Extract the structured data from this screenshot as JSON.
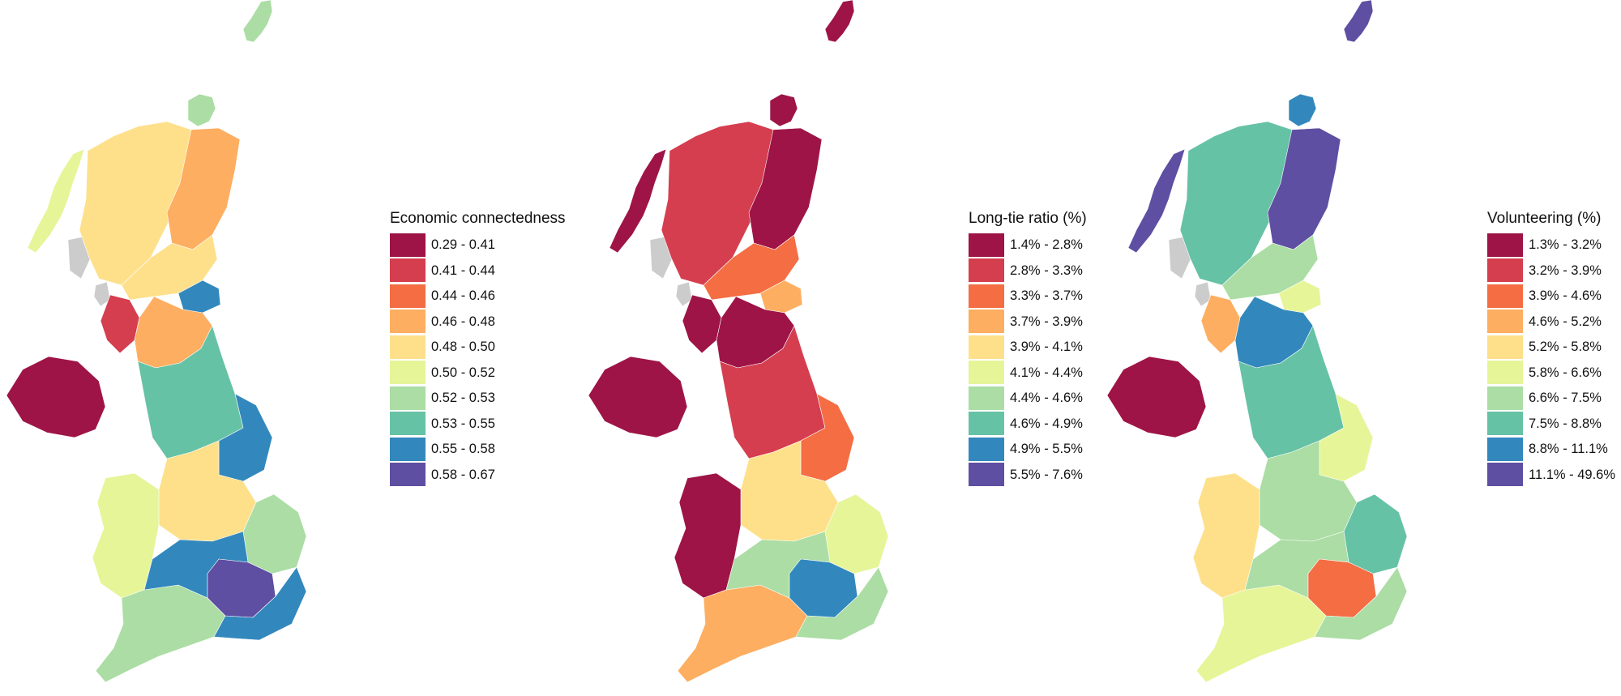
{
  "palette": [
    "#9e1446",
    "#d53e4f",
    "#f46d43",
    "#fdae61",
    "#fee08b",
    "#e6f598",
    "#abdda4",
    "#66c2a5",
    "#3288bd",
    "#5e4fa2"
  ],
  "no_data_color": "#cccccc",
  "panels": [
    {
      "id": "economic-connectedness",
      "legend": {
        "title": "Economic connectedness",
        "items": [
          {
            "label": "0.29 - 0.41",
            "color": "#9e1446"
          },
          {
            "label": "0.41 - 0.44",
            "color": "#d53e4f"
          },
          {
            "label": "0.44 - 0.46",
            "color": "#f46d43"
          },
          {
            "label": "0.46 - 0.48",
            "color": "#fdae61"
          },
          {
            "label": "0.48 - 0.50",
            "color": "#fee08b"
          },
          {
            "label": "0.50 - 0.52",
            "color": "#e6f598"
          },
          {
            "label": "0.52 - 0.53",
            "color": "#abdda4"
          },
          {
            "label": "0.53 - 0.55",
            "color": "#66c2a5"
          },
          {
            "label": "0.55 - 0.58",
            "color": "#3288bd"
          },
          {
            "label": "0.58 - 0.67",
            "color": "#5e4fa2"
          }
        ]
      },
      "regions": {
        "shetland": 6,
        "orkney": 6,
        "highlands": 4,
        "outer_hebrides": 5,
        "inner_isles": 10,
        "north_east": 3,
        "central": 4,
        "glasgow": 1,
        "edinburgh": 8,
        "borders": 3,
        "northern_ireland": 0,
        "north_england": 7,
        "yorkshire": 8,
        "midlands": 4,
        "wales": 5,
        "east_anglia": 6,
        "london": 9,
        "south_west": 6,
        "south_east": 8
      }
    },
    {
      "id": "long-tie-ratio",
      "legend": {
        "title": "Long-tie ratio (%)",
        "items": [
          {
            "label": "1.4% - 2.8%",
            "color": "#9e1446"
          },
          {
            "label": "2.8% - 3.3%",
            "color": "#d53e4f"
          },
          {
            "label": "3.3% - 3.7%",
            "color": "#f46d43"
          },
          {
            "label": "3.7% - 3.9%",
            "color": "#fdae61"
          },
          {
            "label": "3.9% - 4.1%",
            "color": "#fee08b"
          },
          {
            "label": "4.1% - 4.4%",
            "color": "#e6f598"
          },
          {
            "label": "4.4% - 4.6%",
            "color": "#abdda4"
          },
          {
            "label": "4.6% - 4.9%",
            "color": "#66c2a5"
          },
          {
            "label": "4.9% - 5.5%",
            "color": "#3288bd"
          },
          {
            "label": "5.5% - 7.6%",
            "color": "#5e4fa2"
          }
        ]
      },
      "regions": {
        "shetland": 0,
        "orkney": 0,
        "highlands": 1,
        "outer_hebrides": 0,
        "inner_isles": 10,
        "north_east": 0,
        "central": 2,
        "glasgow": 0,
        "edinburgh": 3,
        "borders": 0,
        "northern_ireland": 0,
        "north_england": 1,
        "yorkshire": 2,
        "midlands": 4,
        "wales": 0,
        "east_anglia": 5,
        "london": 8,
        "south_west": 3,
        "south_east": 6
      }
    },
    {
      "id": "volunteering",
      "legend": {
        "title": "Volunteering (%)",
        "items": [
          {
            "label": "1.3% - 3.2%",
            "color": "#9e1446"
          },
          {
            "label": "3.2% - 3.9%",
            "color": "#d53e4f"
          },
          {
            "label": "3.9% - 4.6%",
            "color": "#f46d43"
          },
          {
            "label": "4.6% - 5.2%",
            "color": "#fdae61"
          },
          {
            "label": "5.2% - 5.8%",
            "color": "#fee08b"
          },
          {
            "label": "5.8% - 6.6%",
            "color": "#e6f598"
          },
          {
            "label": "6.6% - 7.5%",
            "color": "#abdda4"
          },
          {
            "label": "7.5% - 8.8%",
            "color": "#66c2a5"
          },
          {
            "label": "8.8% - 11.1%",
            "color": "#3288bd"
          },
          {
            "label": "11.1% - 49.6%",
            "color": "#5e4fa2"
          }
        ]
      },
      "regions": {
        "shetland": 9,
        "orkney": 8,
        "highlands": 7,
        "outer_hebrides": 9,
        "inner_isles": 10,
        "north_east": 9,
        "central": 6,
        "glasgow": 3,
        "edinburgh": 5,
        "borders": 8,
        "northern_ireland": 0,
        "north_england": 7,
        "yorkshire": 5,
        "midlands": 6,
        "wales": 4,
        "east_anglia": 7,
        "london": 2,
        "south_west": 5,
        "south_east": 6
      }
    }
  ]
}
